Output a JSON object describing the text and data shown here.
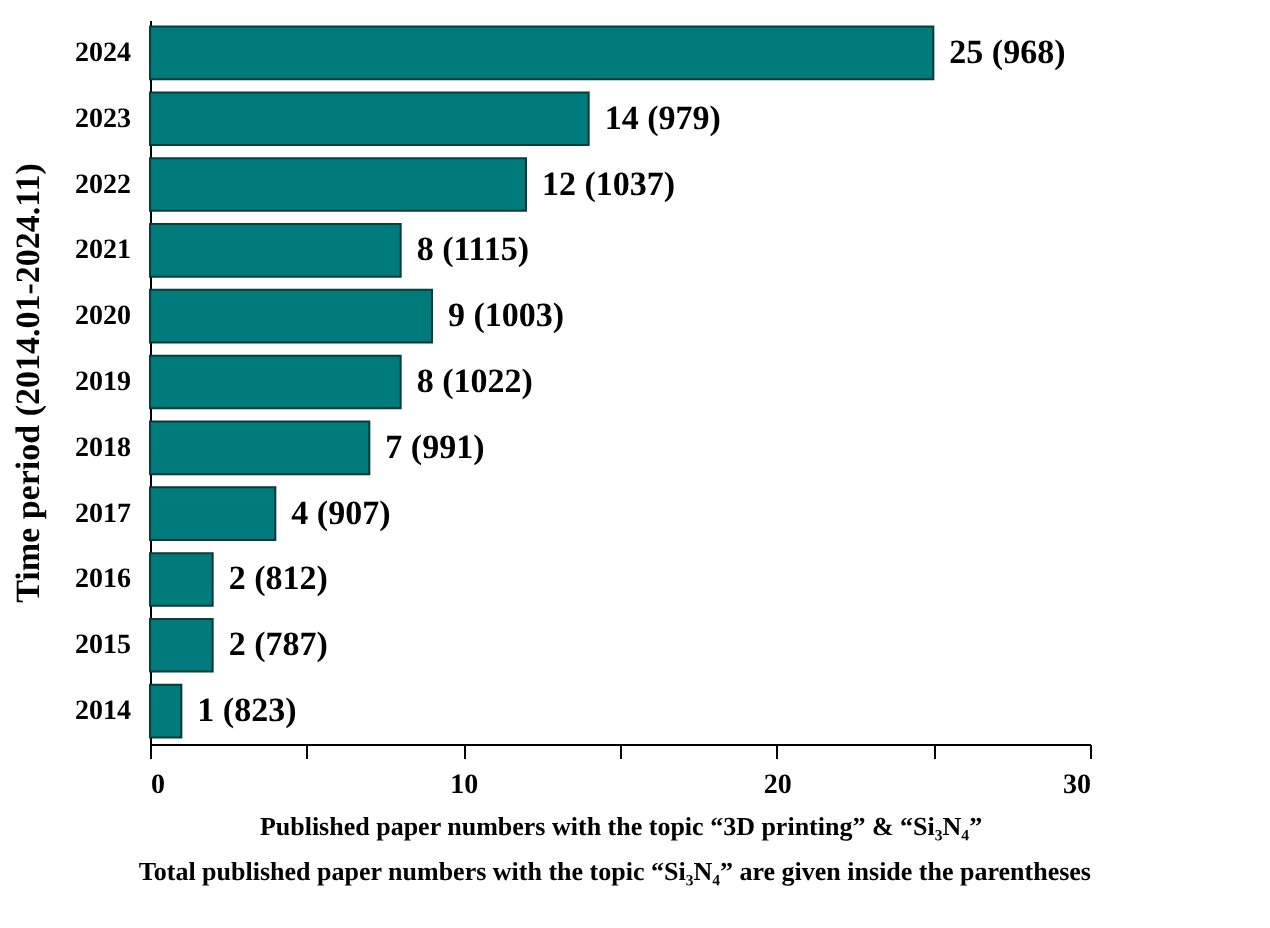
{
  "chart_data": {
    "type": "bar",
    "orientation": "horizontal",
    "categories": [
      "2024",
      "2023",
      "2022",
      "2021",
      "2020",
      "2019",
      "2018",
      "2017",
      "2016",
      "2015",
      "2014"
    ],
    "values": [
      25,
      14,
      12,
      8,
      9,
      8,
      7,
      4,
      2,
      2,
      1
    ],
    "value_labels": [
      "25 (968)",
      "14 (979)",
      "12 (1037)",
      "8 (1115)",
      "9 (1003)",
      "8 (1022)",
      "7 (991)",
      "4 (907)",
      "2 (812)",
      "2 (787)",
      "1 (823)"
    ],
    "color": "#007b7b",
    "xlim": [
      0,
      30
    ],
    "xticks": [
      0,
      {
        "value": 5,
        "label": null
      },
      10,
      {
        "value": 15,
        "label": null
      },
      20,
      {
        "value": 25,
        "label": null
      },
      30
    ],
    "xlabel": "Published paper numbers with the topic “3D printing” & “Si₃N₄”",
    "ylabel": "Time period (2014.01-2024.11)",
    "annotations": [
      "Total published paper numbers with  the topic “Si₃N₄”  are given inside the parentheses"
    ],
    "grid": false
  }
}
